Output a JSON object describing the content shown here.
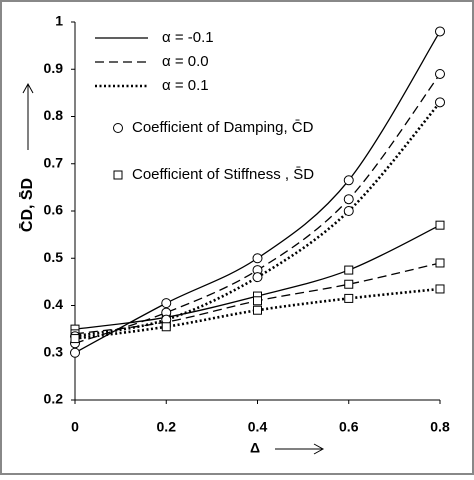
{
  "chart_data": {
    "type": "line",
    "x_label": "Δ",
    "y_label": "C̄D, S̄D",
    "x": [
      0,
      0.2,
      0.4,
      0.6,
      0.8
    ],
    "series": [
      {
        "name": "α = -0.1",
        "dash": "solid",
        "color": "#000000",
        "damping": [
          0.3,
          0.405,
          0.5,
          0.665,
          0.98
        ],
        "stiffness": [
          0.35,
          0.375,
          0.42,
          0.475,
          0.57
        ]
      },
      {
        "name": "α = 0.0",
        "dash": "dashed",
        "color": "#000000",
        "damping": [
          0.32,
          0.385,
          0.475,
          0.625,
          0.89
        ],
        "stiffness": [
          0.34,
          0.365,
          0.41,
          0.445,
          0.49
        ]
      },
      {
        "name": "α = 0.1",
        "dash": "dotted",
        "color": "#000000",
        "damping": [
          0.335,
          0.37,
          0.46,
          0.6,
          0.83
        ],
        "stiffness": [
          0.33,
          0.355,
          0.39,
          0.415,
          0.435
        ]
      }
    ],
    "markers": [
      {
        "label": "Coefficient of Damping, C̄D",
        "symbol": "circle",
        "list": "damping"
      },
      {
        "label": "Coefficient of Stiffness , S̄D",
        "symbol": "square",
        "list": "stiffness"
      }
    ],
    "xlim": [
      0,
      0.8
    ],
    "xticks": [
      0,
      0.2,
      0.4,
      0.6,
      0.8
    ],
    "ylim": [
      0.2,
      1
    ],
    "yticks": [
      0.2,
      0.3,
      0.4,
      0.5,
      0.6,
      0.7,
      0.8,
      0.9,
      1
    ]
  }
}
